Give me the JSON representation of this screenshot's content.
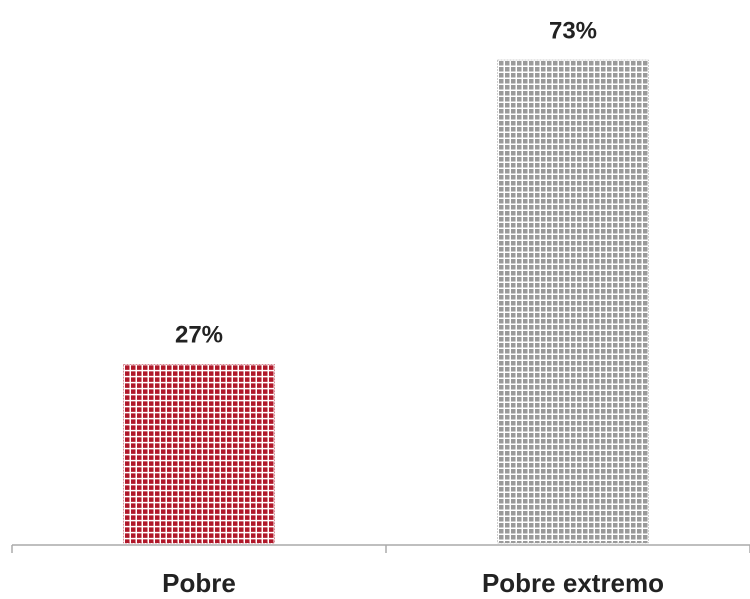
{
  "chart_data": {
    "type": "bar",
    "categories": [
      "Pobre",
      "Pobre extremo"
    ],
    "values": [
      27,
      73
    ],
    "value_labels": [
      "27%",
      "73%"
    ],
    "colors": [
      "#b0182a",
      "#9a9a9a"
    ]
  }
}
